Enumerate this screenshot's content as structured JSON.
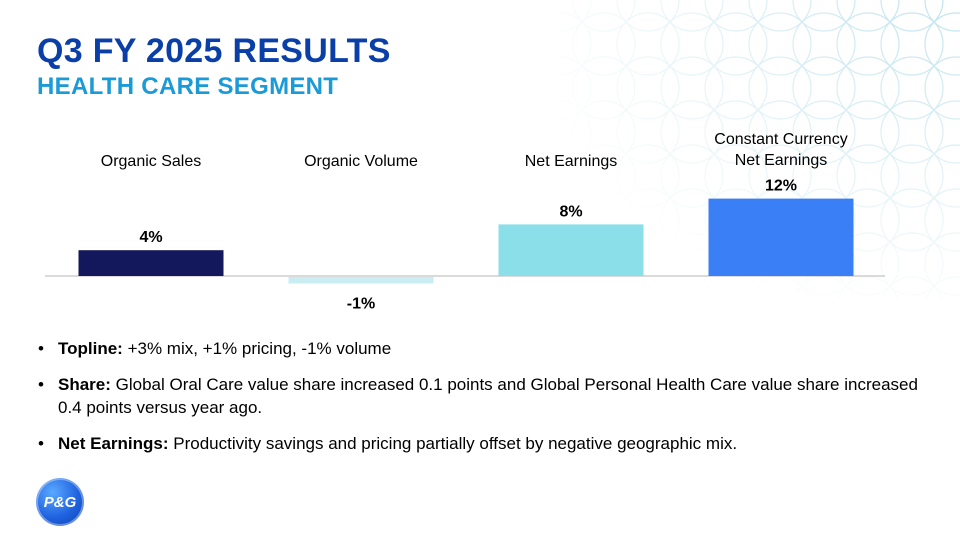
{
  "header": {
    "title": "Q3 FY 2025 RESULTS",
    "subtitle": "HEALTH CARE SEGMENT"
  },
  "chart_data": {
    "type": "bar",
    "categories": [
      "Organic Sales",
      "Organic Volume",
      "Net Earnings",
      "Constant Currency Net Earnings"
    ],
    "values": [
      4,
      -1,
      8,
      12
    ],
    "data_labels": [
      "4%",
      "-1%",
      "8%",
      "12%"
    ],
    "colors": [
      "#13175c",
      "#c9edf3",
      "#8adfe9",
      "#3a7ff5"
    ],
    "ylim": [
      -1.5,
      12.5
    ],
    "grid": false
  },
  "bullets": [
    {
      "label": "Topline:",
      "text": " +3% mix, +1% pricing, -1% volume"
    },
    {
      "label": "Share:",
      "text": " Global Oral Care value share increased 0.1 points and Global Personal Health Care value share increased 0.4 points versus year ago."
    },
    {
      "label": "Net Earnings:",
      "text": " Productivity savings and pricing partially offset by negative geographic mix."
    }
  ],
  "logo": {
    "text": "P&G"
  },
  "colors": {
    "title": "#0b3fa8",
    "subtitle": "#1a9ad6",
    "pattern": "#bfe3ee"
  }
}
